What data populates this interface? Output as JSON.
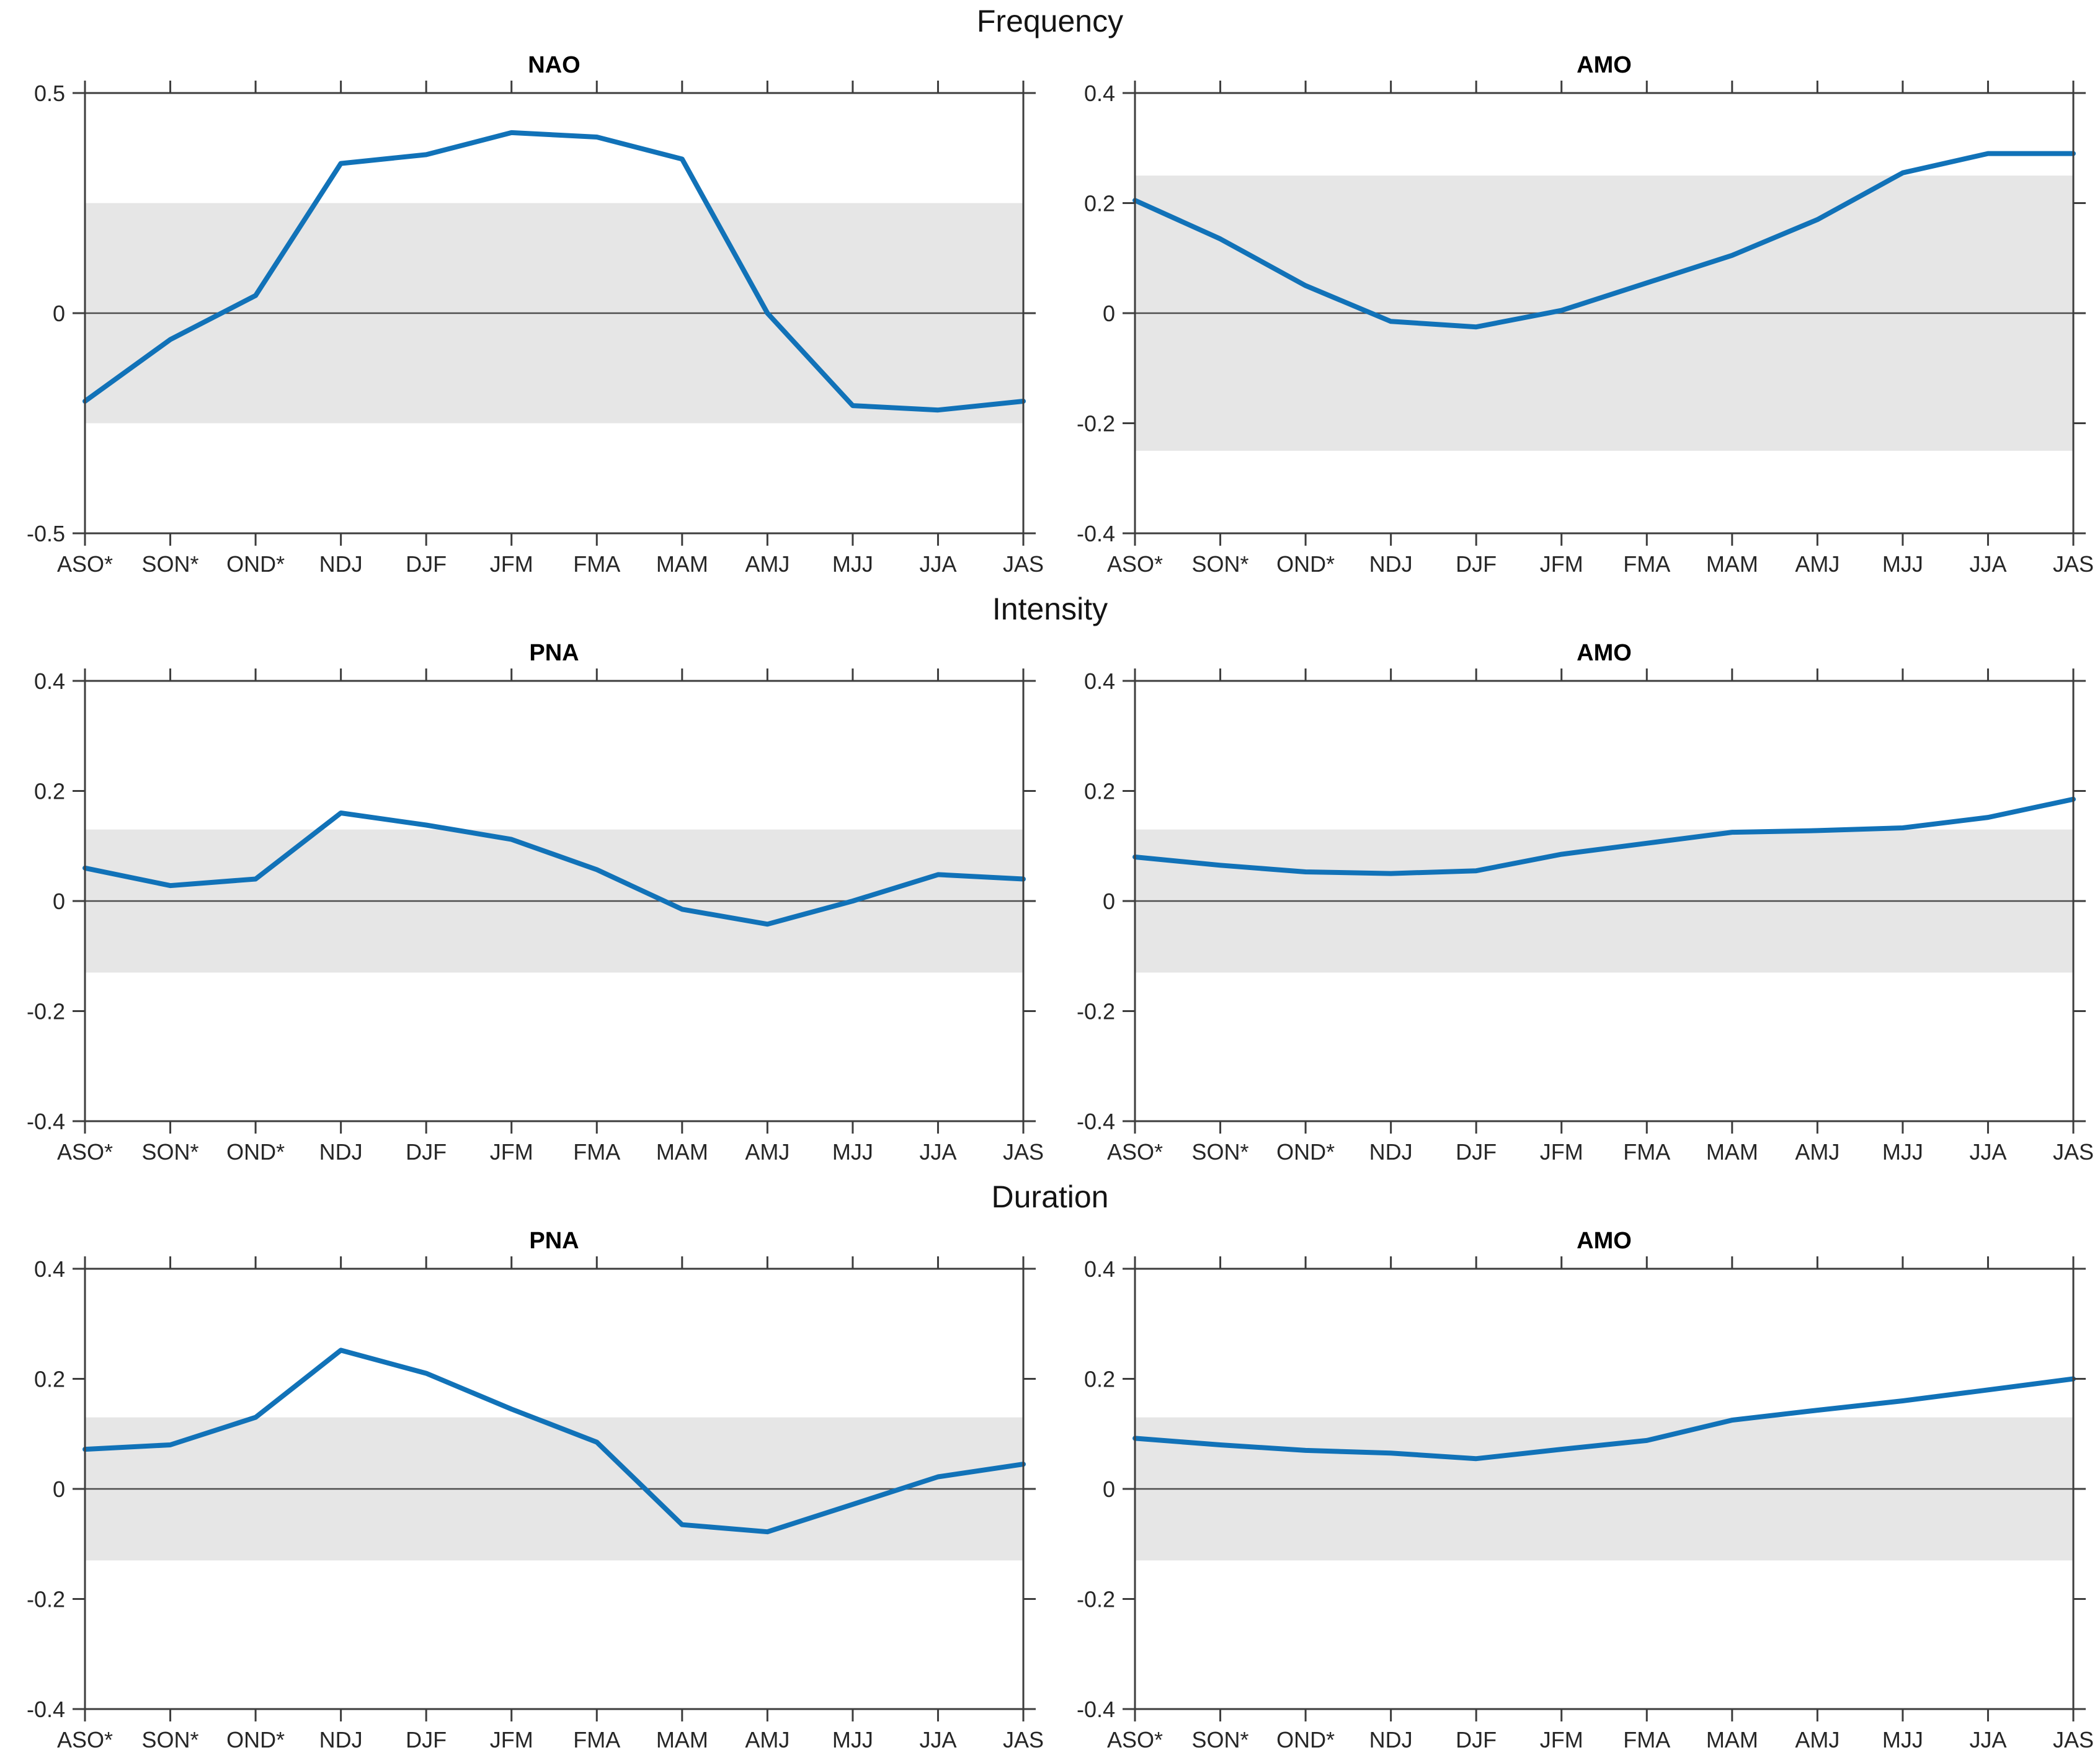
{
  "figure": {
    "sections": [
      {
        "label": "Frequency"
      },
      {
        "label": "Intensity"
      },
      {
        "label": "Duration"
      }
    ]
  },
  "colors": {
    "line": "#1172b8",
    "significance_band": "#e6e6e6",
    "axis": "#3d3d3d",
    "zero_line": "#4d4d4d",
    "text": "#262626",
    "background": "#ffffff"
  },
  "chart_data": [
    {
      "type": "line",
      "section": "Frequency",
      "title": "NAO",
      "categories": [
        "ASO*",
        "SON*",
        "OND*",
        "NDJ",
        "DJF",
        "JFM",
        "FMA",
        "MAM",
        "AMJ",
        "MJJ",
        "JJA",
        "JAS"
      ],
      "values": [
        -0.2,
        -0.06,
        0.04,
        0.34,
        0.36,
        0.41,
        0.4,
        0.35,
        0.0,
        -0.21,
        -0.22,
        -0.2
      ],
      "ylim": [
        -0.5,
        0.5
      ],
      "yticks": [
        0.5,
        0,
        -0.5
      ],
      "ytick_labels": [
        "0.5",
        "0",
        "-0.5"
      ],
      "significance_band": [
        -0.25,
        0.25
      ],
      "zero_line": 0,
      "grid": false,
      "legend": false
    },
    {
      "type": "line",
      "section": "Frequency",
      "title": "AMO",
      "categories": [
        "ASO*",
        "SON*",
        "OND*",
        "NDJ",
        "DJF",
        "JFM",
        "FMA",
        "MAM",
        "AMJ",
        "MJJ",
        "JJA",
        "JAS"
      ],
      "values": [
        0.205,
        0.135,
        0.05,
        -0.015,
        -0.025,
        0.005,
        0.055,
        0.105,
        0.17,
        0.255,
        0.29,
        0.29
      ],
      "ylim": [
        -0.4,
        0.4
      ],
      "yticks": [
        0.4,
        0.2,
        0,
        -0.2,
        -0.4
      ],
      "ytick_labels": [
        "0.4",
        "0.2",
        "0",
        "-0.2",
        "-0.4"
      ],
      "significance_band": [
        -0.25,
        0.25
      ],
      "zero_line": 0,
      "grid": false,
      "legend": false
    },
    {
      "type": "line",
      "section": "Intensity",
      "title": "PNA",
      "categories": [
        "ASO*",
        "SON*",
        "OND*",
        "NDJ",
        "DJF",
        "JFM",
        "FMA",
        "MAM",
        "AMJ",
        "MJJ",
        "JJA",
        "JAS"
      ],
      "values": [
        0.06,
        0.028,
        0.04,
        0.16,
        0.138,
        0.112,
        0.057,
        -0.015,
        -0.042,
        0.0,
        0.048,
        0.04
      ],
      "ylim": [
        -0.4,
        0.4
      ],
      "yticks": [
        0.4,
        0.2,
        0,
        -0.2,
        -0.4
      ],
      "ytick_labels": [
        "0.4",
        "0.2",
        "0",
        "-0.2",
        "-0.4"
      ],
      "significance_band": [
        -0.13,
        0.13
      ],
      "zero_line": 0,
      "grid": false,
      "legend": false
    },
    {
      "type": "line",
      "section": "Intensity",
      "title": "AMO",
      "categories": [
        "ASO*",
        "SON*",
        "OND*",
        "NDJ",
        "DJF",
        "JFM",
        "FMA",
        "MAM",
        "AMJ",
        "MJJ",
        "JJA",
        "JAS"
      ],
      "values": [
        0.08,
        0.065,
        0.053,
        0.05,
        0.055,
        0.085,
        0.105,
        0.125,
        0.128,
        0.133,
        0.152,
        0.185
      ],
      "ylim": [
        -0.4,
        0.4
      ],
      "yticks": [
        0.4,
        0.2,
        0,
        -0.2,
        -0.4
      ],
      "ytick_labels": [
        "0.4",
        "0.2",
        "0",
        "-0.2",
        "-0.4"
      ],
      "significance_band": [
        -0.13,
        0.13
      ],
      "zero_line": 0,
      "grid": false,
      "legend": false
    },
    {
      "type": "line",
      "section": "Duration",
      "title": "PNA",
      "categories": [
        "ASO*",
        "SON*",
        "OND*",
        "NDJ",
        "DJF",
        "JFM",
        "FMA",
        "MAM",
        "AMJ",
        "MJJ",
        "JJA",
        "JAS"
      ],
      "values": [
        0.072,
        0.08,
        0.13,
        0.252,
        0.21,
        0.145,
        0.085,
        -0.065,
        -0.078,
        -0.028,
        0.022,
        0.045
      ],
      "ylim": [
        -0.4,
        0.4
      ],
      "yticks": [
        0.4,
        0.2,
        0,
        -0.2,
        -0.4
      ],
      "ytick_labels": [
        "0.4",
        "0.2",
        "0",
        "-0.2",
        "-0.4"
      ],
      "significance_band": [
        -0.13,
        0.13
      ],
      "zero_line": 0,
      "grid": false,
      "legend": false
    },
    {
      "type": "line",
      "section": "Duration",
      "title": "AMO",
      "categories": [
        "ASO*",
        "SON*",
        "OND*",
        "NDJ",
        "DJF",
        "JFM",
        "FMA",
        "MAM",
        "AMJ",
        "MJJ",
        "JJA",
        "JAS"
      ],
      "values": [
        0.092,
        0.08,
        0.07,
        0.065,
        0.055,
        0.072,
        0.088,
        0.125,
        0.143,
        0.16,
        0.18,
        0.2
      ],
      "ylim": [
        -0.4,
        0.4
      ],
      "yticks": [
        0.4,
        0.2,
        0,
        -0.2,
        -0.4
      ],
      "ytick_labels": [
        "0.4",
        "0.2",
        "0",
        "-0.2",
        "-0.4"
      ],
      "significance_band": [
        -0.13,
        0.13
      ],
      "zero_line": 0,
      "grid": false,
      "legend": false
    }
  ]
}
